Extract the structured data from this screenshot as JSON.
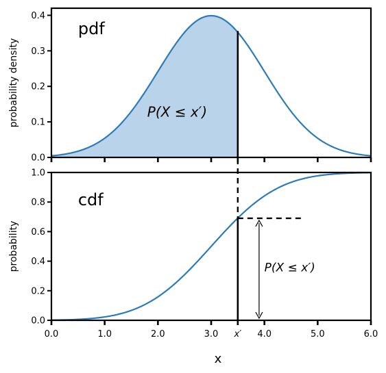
{
  "chart_data": [
    {
      "type": "area",
      "title": "pdf",
      "ylabel": "probability density",
      "xlim": [
        0,
        6
      ],
      "ylim": [
        0,
        0.42
      ],
      "yticks": [
        "0.0",
        "0.1",
        "0.2",
        "0.3",
        "0.4"
      ],
      "ytick_values": [
        0,
        0.1,
        0.2,
        0.3,
        0.4
      ],
      "distribution": {
        "mean": 3.0,
        "sd": 1.0
      },
      "curve_color": "#2b7bba",
      "fill_color": "#b9d3ea",
      "shaded_until": 3.5,
      "annotation": "P(X ≤ x′)"
    },
    {
      "type": "line",
      "title": "cdf",
      "ylabel": "probability",
      "xlabel": "x",
      "xlim": [
        0,
        6
      ],
      "ylim": [
        0,
        1.0
      ],
      "xticks": [
        "0.0",
        "1.0",
        "2.0",
        "3.0",
        "x′",
        "4.0",
        "5.0",
        "6.0"
      ],
      "xtick_values": [
        0,
        1,
        2,
        3,
        3.5,
        4,
        5,
        6
      ],
      "yticks": [
        "0.0",
        "0.2",
        "0.4",
        "0.6",
        "0.8",
        "1.0"
      ],
      "ytick_values": [
        0,
        0.2,
        0.4,
        0.6,
        0.8,
        1.0
      ],
      "distribution": {
        "mean": 3.0,
        "sd": 1.0
      },
      "curve_color": "#2b7bba",
      "marker_x": 3.5,
      "marker_value": 0.69,
      "annotation": "P(X ≤ x′)"
    }
  ]
}
